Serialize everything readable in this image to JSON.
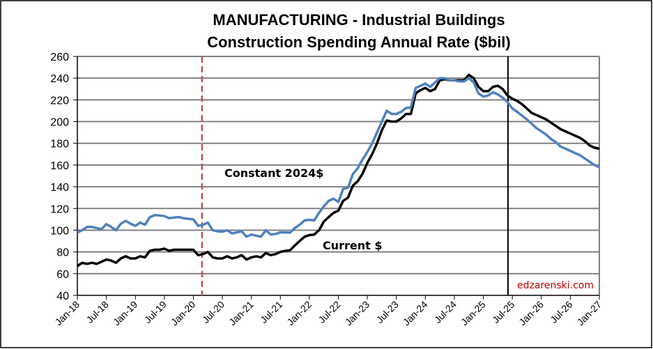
{
  "chart_data": {
    "type": "line",
    "title": [
      "MANUFACTURING - Industrial Buildings",
      "Construction Spending Annual Rate ($bil)"
    ],
    "xlabel": "",
    "ylabel": "",
    "ylim": [
      40,
      260
    ],
    "yticks": [
      40,
      60,
      80,
      100,
      120,
      140,
      160,
      180,
      200,
      220,
      240,
      260
    ],
    "x_start": "Jan-18",
    "x_months": 108,
    "xtick_labels": [
      "Jan-18",
      "Jul-18",
      "Jan-19",
      "Jul-19",
      "Jan-20",
      "Jul-20",
      "Jan-21",
      "Jul-21",
      "Jan-22",
      "Jul-22",
      "Jan-23",
      "Jul-23",
      "Jan-24",
      "Jul-24",
      "Jan-25",
      "Jul-25",
      "Jan-26",
      "Jul-26",
      "Jan-27"
    ],
    "grid": true,
    "series": [
      {
        "name": "Current $",
        "color": "#000000",
        "values": [
          67,
          70,
          69,
          70,
          69,
          71,
          73,
          72,
          70,
          74,
          76,
          74,
          74,
          76,
          75,
          81,
          82,
          82,
          83,
          81,
          82,
          82,
          82,
          82,
          82,
          77,
          78,
          80,
          75,
          74,
          74,
          76,
          74,
          75,
          77,
          73,
          75,
          76,
          75,
          79,
          77,
          78,
          80,
          81,
          81.5,
          86,
          90,
          94,
          95.5,
          96,
          100,
          108,
          112,
          116,
          118,
          127,
          130,
          141,
          145,
          152,
          162,
          170,
          180,
          192,
          201,
          200,
          200,
          203,
          207,
          207,
          226,
          229,
          231,
          228,
          230,
          238,
          239,
          238,
          238,
          238,
          238,
          243,
          240,
          232,
          228,
          228,
          232,
          233,
          230,
          224,
          221,
          219,
          216,
          212,
          208,
          206,
          204,
          202,
          199,
          196,
          193,
          191,
          189,
          187,
          185,
          182,
          178,
          176,
          175
        ]
      },
      {
        "name": "Constant 2024$",
        "color": "#4F81BD",
        "values": [
          98,
          100,
          103,
          103,
          102,
          101,
          105.6,
          103,
          100,
          106,
          108.6,
          106,
          104,
          107,
          105,
          112,
          113.8,
          113.6,
          113,
          111,
          111.7,
          112,
          111,
          110.5,
          110,
          104,
          105,
          107,
          100,
          99,
          98.6,
          100,
          97,
          98,
          99,
          94,
          96,
          95,
          94,
          100,
          96,
          96.5,
          98,
          98,
          97.7,
          102,
          105,
          109,
          109.5,
          109,
          116,
          122,
          127,
          129,
          126,
          138,
          139,
          151.6,
          157,
          165,
          172,
          180,
          190,
          200,
          210,
          207,
          207,
          209,
          212.5,
          213,
          231,
          233,
          235,
          232,
          236,
          240,
          240,
          238,
          238,
          237,
          237,
          240,
          236,
          226,
          223,
          224,
          227,
          225,
          222,
          218,
          212,
          209,
          205.5,
          202,
          198,
          194,
          191,
          188,
          184,
          181,
          177,
          175,
          173,
          171,
          169,
          166,
          163,
          160,
          158
        ]
      }
    ],
    "annotations": {
      "constant_label": "Constant 2024$",
      "current_label": "Current $",
      "watermark": "edzarenski.com"
    },
    "reference_lines": [
      {
        "name": "covid-marker",
        "month_index": 25.8,
        "style": "dashed",
        "color": "#C0504D"
      },
      {
        "name": "forecast-start",
        "month_index": 89.1,
        "style": "solid",
        "color": "#000000"
      }
    ],
    "watermark_color": "#C00000"
  }
}
